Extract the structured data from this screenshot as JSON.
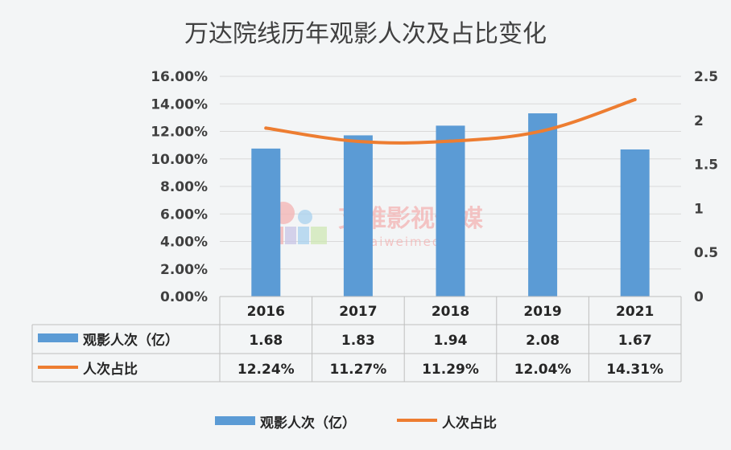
{
  "chart_data": {
    "type": "bar",
    "title": "万达院线历年观影人次及占比变化",
    "categories": [
      "2016",
      "2017",
      "2018",
      "2019",
      "2021"
    ],
    "series": [
      {
        "name": "观影人次（亿）",
        "type": "bar",
        "axis": "right",
        "values": [
          1.68,
          1.83,
          1.94,
          2.08,
          1.67
        ],
        "color": "#5b9bd5"
      },
      {
        "name": "人次占比",
        "type": "line",
        "axis": "left",
        "values": [
          12.24,
          11.27,
          11.29,
          12.04,
          14.31
        ],
        "color": "#ed7d31"
      }
    ],
    "table_values": {
      "bar": [
        "1.68",
        "1.83",
        "1.94",
        "2.08",
        "1.67"
      ],
      "line": [
        "12.24%",
        "11.27%",
        "11.29%",
        "12.04%",
        "14.31%"
      ]
    },
    "left_axis": {
      "ylim": [
        0,
        16
      ],
      "ticks": [
        "0.00%",
        "2.00%",
        "4.00%",
        "6.00%",
        "8.00%",
        "10.00%",
        "12.00%",
        "14.00%",
        "16.00%"
      ]
    },
    "right_axis": {
      "ylim": [
        0,
        2.5
      ],
      "ticks": [
        "0",
        "0.5",
        "1",
        "1.5",
        "2",
        "2.5"
      ]
    },
    "grid": true,
    "legend_position": "bottom",
    "data_table": true
  },
  "watermark": {
    "text": "艾维影视传媒",
    "subtext": "aiweimedia"
  }
}
